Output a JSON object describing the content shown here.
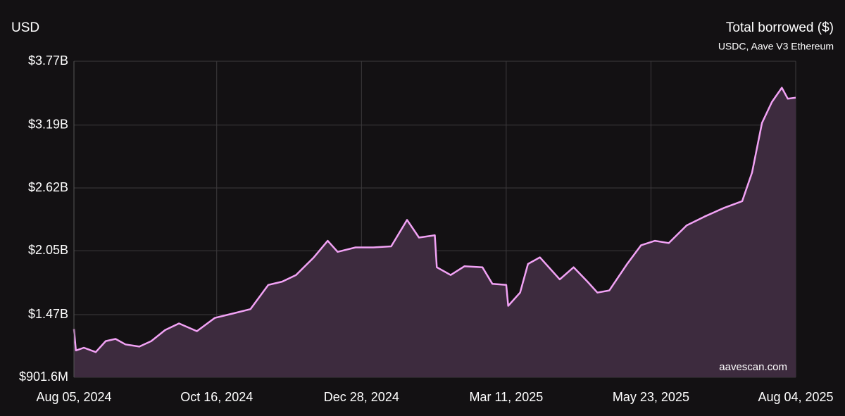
{
  "chart_data": {
    "type": "area",
    "title": "Total borrowed ($)",
    "subtitle": "USDC, Aave V3 Ethereum",
    "y_label": "USD",
    "watermark": "aavescan.com",
    "color": "#f2a2f5",
    "fill": "#3d2b3e",
    "grid": true,
    "x": [
      "2024-08-05",
      "2024-08-06",
      "2024-08-10",
      "2024-08-16",
      "2024-08-21",
      "2024-08-26",
      "2024-08-31",
      "2024-09-07",
      "2024-09-13",
      "2024-09-20",
      "2024-09-27",
      "2024-10-06",
      "2024-10-15",
      "2024-10-24",
      "2024-11-02",
      "2024-11-11",
      "2024-11-18",
      "2024-11-25",
      "2024-12-04",
      "2024-12-11",
      "2024-12-16",
      "2024-12-25",
      "2025-01-03",
      "2025-01-12",
      "2025-01-20",
      "2025-01-26",
      "2025-02-03",
      "2025-02-04",
      "2025-02-11",
      "2025-02-18",
      "2025-02-27",
      "2025-03-04",
      "2025-03-11",
      "2025-03-12",
      "2025-03-18",
      "2025-03-22",
      "2025-03-28",
      "2025-04-07",
      "2025-04-14",
      "2025-04-21",
      "2025-04-26",
      "2025-05-02",
      "2025-05-11",
      "2025-05-18",
      "2025-05-25",
      "2025-06-01",
      "2025-06-10",
      "2025-06-19",
      "2025-06-29",
      "2025-07-08",
      "2025-07-13",
      "2025-07-18",
      "2025-07-23",
      "2025-07-28",
      "2025-07-31",
      "2025-08-04"
    ],
    "values": [
      1340000000,
      1145000000,
      1170000000,
      1130000000,
      1230000000,
      1250000000,
      1200000000,
      1180000000,
      1230000000,
      1330000000,
      1390000000,
      1320000000,
      1440000000,
      1480000000,
      1520000000,
      1740000000,
      1770000000,
      1830000000,
      1990000000,
      2140000000,
      2040000000,
      2080000000,
      2080000000,
      2090000000,
      2330000000,
      2170000000,
      2190000000,
      1900000000,
      1830000000,
      1910000000,
      1900000000,
      1750000000,
      1740000000,
      1550000000,
      1670000000,
      1930000000,
      1990000000,
      1790000000,
      1900000000,
      1770000000,
      1670000000,
      1690000000,
      1930000000,
      2100000000,
      2140000000,
      2120000000,
      2280000000,
      2360000000,
      2440000000,
      2500000000,
      2760000000,
      3210000000,
      3400000000,
      3530000000,
      3430000000,
      3440000000
    ],
    "xlim": [
      "2024-08-05",
      "2025-08-04"
    ],
    "xticks": [
      {
        "value": "2024-08-05",
        "label": "Aug 05, 2024"
      },
      {
        "value": "2024-10-16",
        "label": "Oct 16, 2024"
      },
      {
        "value": "2024-12-28",
        "label": "Dec 28, 2024"
      },
      {
        "value": "2025-03-11",
        "label": "Mar 11, 2025"
      },
      {
        "value": "2025-05-23",
        "label": "May 23, 2025"
      },
      {
        "value": "2025-08-04",
        "label": "Aug 04, 2025"
      }
    ],
    "ylim": [
      901600000,
      3770000000
    ],
    "yticks": [
      {
        "value": 901600000,
        "label": "$901.6M"
      },
      {
        "value": 1470000000,
        "label": "$1.47B"
      },
      {
        "value": 2050000000,
        "label": "$2.05B"
      },
      {
        "value": 2620000000,
        "label": "$2.62B"
      },
      {
        "value": 3190000000,
        "label": "$3.19B"
      },
      {
        "value": 3770000000,
        "label": "$3.77B"
      }
    ]
  }
}
